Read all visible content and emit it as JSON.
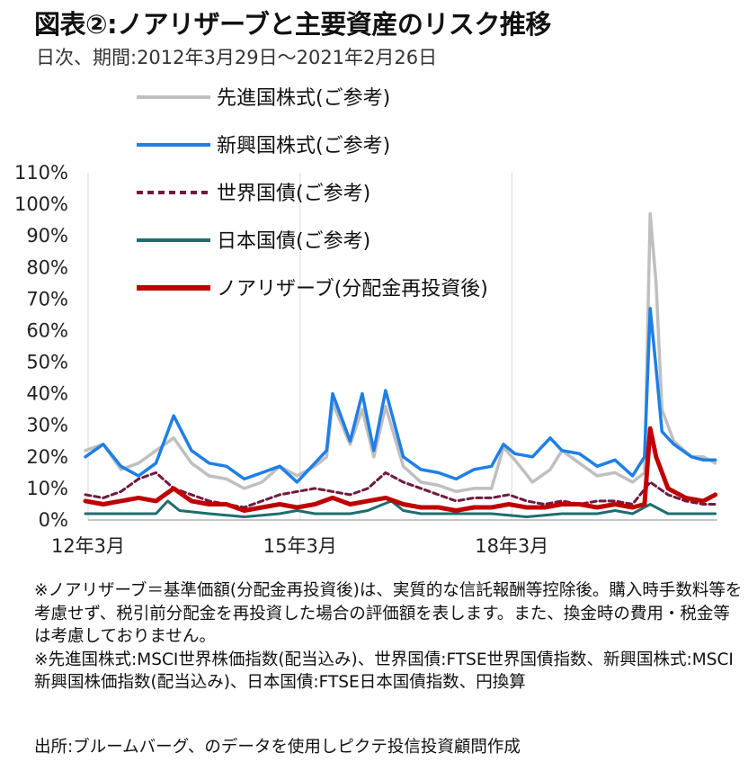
{
  "header": {
    "title": "図表②:ノアリザーブと主要資産のリスク推移",
    "subtitle": "日次、期間:2012年3月29日～2021年2月26日"
  },
  "chart_data": {
    "type": "line",
    "ylim": [
      0,
      110
    ],
    "y_ticks": [
      "0%",
      "10%",
      "20%",
      "30%",
      "40%",
      "50%",
      "60%",
      "70%",
      "80%",
      "90%",
      "100%",
      "110%"
    ],
    "x_range": [
      "2012-03-29",
      "2021-02-26"
    ],
    "x_ticks": [
      {
        "date": "2012-03-29",
        "label": "12年3月"
      },
      {
        "date": "2015-03-31",
        "label": "15年3月"
      },
      {
        "date": "2018-03-30",
        "label": "18年3月"
      }
    ],
    "grid": "vertical-only",
    "legend_placement": "top-left",
    "series": [
      {
        "name": "先進国株式(ご参考)",
        "color": "#bfbfbf",
        "style": "solid",
        "points": [
          [
            "2012-03",
            22
          ],
          [
            "2012-06",
            24
          ],
          [
            "2012-09",
            16
          ],
          [
            "2012-12",
            18
          ],
          [
            "2013-03",
            22
          ],
          [
            "2013-06",
            26
          ],
          [
            "2013-09",
            18
          ],
          [
            "2013-12",
            14
          ],
          [
            "2014-03",
            13
          ],
          [
            "2014-06",
            10
          ],
          [
            "2014-09",
            12
          ],
          [
            "2014-12",
            17
          ],
          [
            "2015-03",
            14
          ],
          [
            "2015-06",
            17
          ],
          [
            "2015-08",
            20
          ],
          [
            "2015-09",
            37
          ],
          [
            "2015-12",
            24
          ],
          [
            "2016-02",
            35
          ],
          [
            "2016-04",
            20
          ],
          [
            "2016-06",
            36
          ],
          [
            "2016-09",
            17
          ],
          [
            "2016-12",
            12
          ],
          [
            "2017-03",
            11
          ],
          [
            "2017-06",
            9
          ],
          [
            "2017-09",
            10
          ],
          [
            "2017-12",
            10
          ],
          [
            "2018-02",
            23
          ],
          [
            "2018-04",
            19
          ],
          [
            "2018-07",
            12
          ],
          [
            "2018-10",
            16
          ],
          [
            "2018-12",
            22
          ],
          [
            "2019-03",
            18
          ],
          [
            "2019-06",
            14
          ],
          [
            "2019-09",
            15
          ],
          [
            "2019-12",
            12
          ],
          [
            "2020-02",
            15
          ],
          [
            "2020-03",
            97
          ],
          [
            "2020-04",
            75
          ],
          [
            "2020-05",
            35
          ],
          [
            "2020-07",
            25
          ],
          [
            "2020-10",
            20
          ],
          [
            "2020-12",
            20
          ],
          [
            "2021-02",
            18
          ]
        ]
      },
      {
        "name": "新興国株式(ご参考)",
        "color": "#1e7fe6",
        "style": "solid",
        "points": [
          [
            "2012-03",
            20
          ],
          [
            "2012-06",
            24
          ],
          [
            "2012-09",
            17
          ],
          [
            "2012-12",
            14
          ],
          [
            "2013-03",
            18
          ],
          [
            "2013-06",
            33
          ],
          [
            "2013-09",
            22
          ],
          [
            "2013-12",
            18
          ],
          [
            "2014-03",
            17
          ],
          [
            "2014-06",
            13
          ],
          [
            "2014-09",
            15
          ],
          [
            "2014-12",
            17
          ],
          [
            "2015-03",
            12
          ],
          [
            "2015-06",
            18
          ],
          [
            "2015-08",
            22
          ],
          [
            "2015-09",
            40
          ],
          [
            "2015-12",
            25
          ],
          [
            "2016-02",
            40
          ],
          [
            "2016-04",
            22
          ],
          [
            "2016-06",
            41
          ],
          [
            "2016-09",
            20
          ],
          [
            "2016-12",
            16
          ],
          [
            "2017-03",
            15
          ],
          [
            "2017-06",
            13
          ],
          [
            "2017-09",
            16
          ],
          [
            "2017-12",
            17
          ],
          [
            "2018-02",
            24
          ],
          [
            "2018-04",
            21
          ],
          [
            "2018-07",
            20
          ],
          [
            "2018-10",
            26
          ],
          [
            "2018-12",
            22
          ],
          [
            "2019-03",
            21
          ],
          [
            "2019-06",
            17
          ],
          [
            "2019-09",
            19
          ],
          [
            "2019-12",
            14
          ],
          [
            "2020-02",
            20
          ],
          [
            "2020-03",
            67
          ],
          [
            "2020-04",
            48
          ],
          [
            "2020-05",
            28
          ],
          [
            "2020-07",
            24
          ],
          [
            "2020-10",
            20
          ],
          [
            "2020-12",
            19
          ],
          [
            "2021-02",
            19
          ]
        ]
      },
      {
        "name": "世界国債(ご参考)",
        "color": "#6e1a40",
        "style": "dashed",
        "points": [
          [
            "2012-03",
            8
          ],
          [
            "2012-06",
            7
          ],
          [
            "2012-09",
            9
          ],
          [
            "2012-12",
            13
          ],
          [
            "2013-03",
            15
          ],
          [
            "2013-06",
            10
          ],
          [
            "2013-09",
            8
          ],
          [
            "2013-12",
            6
          ],
          [
            "2014-03",
            5
          ],
          [
            "2014-06",
            4
          ],
          [
            "2014-09",
            6
          ],
          [
            "2014-12",
            8
          ],
          [
            "2015-03",
            9
          ],
          [
            "2015-06",
            10
          ],
          [
            "2015-09",
            9
          ],
          [
            "2015-12",
            8
          ],
          [
            "2016-03",
            10
          ],
          [
            "2016-06",
            15
          ],
          [
            "2016-09",
            12
          ],
          [
            "2016-12",
            10
          ],
          [
            "2017-03",
            8
          ],
          [
            "2017-06",
            6
          ],
          [
            "2017-09",
            7
          ],
          [
            "2017-12",
            7
          ],
          [
            "2018-03",
            8
          ],
          [
            "2018-06",
            6
          ],
          [
            "2018-09",
            5
          ],
          [
            "2018-12",
            6
          ],
          [
            "2019-03",
            5
          ],
          [
            "2019-06",
            6
          ],
          [
            "2019-09",
            6
          ],
          [
            "2019-12",
            5
          ],
          [
            "2020-03",
            12
          ],
          [
            "2020-06",
            8
          ],
          [
            "2020-09",
            6
          ],
          [
            "2020-12",
            5
          ],
          [
            "2021-02",
            5
          ]
        ]
      },
      {
        "name": "日本国債(ご参考)",
        "color": "#1e6e6e",
        "style": "solid",
        "points": [
          [
            "2012-03",
            2
          ],
          [
            "2012-09",
            2
          ],
          [
            "2013-03",
            2
          ],
          [
            "2013-05",
            6
          ],
          [
            "2013-07",
            3
          ],
          [
            "2013-12",
            2
          ],
          [
            "2014-06",
            1
          ],
          [
            "2014-12",
            2
          ],
          [
            "2015-03",
            3
          ],
          [
            "2015-06",
            2
          ],
          [
            "2015-12",
            2
          ],
          [
            "2016-03",
            3
          ],
          [
            "2016-07",
            6
          ],
          [
            "2016-09",
            3
          ],
          [
            "2016-12",
            2
          ],
          [
            "2017-06",
            2
          ],
          [
            "2017-12",
            2
          ],
          [
            "2018-06",
            1
          ],
          [
            "2018-12",
            2
          ],
          [
            "2019-06",
            2
          ],
          [
            "2019-09",
            3
          ],
          [
            "2019-12",
            2
          ],
          [
            "2020-03",
            5
          ],
          [
            "2020-06",
            2
          ],
          [
            "2020-12",
            2
          ],
          [
            "2021-02",
            2
          ]
        ]
      },
      {
        "name": "ノアリザーブ(分配金再投資後)",
        "color": "#c00000",
        "style": "solid",
        "points": [
          [
            "2012-03",
            6
          ],
          [
            "2012-06",
            5
          ],
          [
            "2012-09",
            6
          ],
          [
            "2012-12",
            7
          ],
          [
            "2013-03",
            6
          ],
          [
            "2013-06",
            10
          ],
          [
            "2013-09",
            6
          ],
          [
            "2013-12",
            5
          ],
          [
            "2014-03",
            5
          ],
          [
            "2014-06",
            3
          ],
          [
            "2014-09",
            4
          ],
          [
            "2014-12",
            5
          ],
          [
            "2015-03",
            4
          ],
          [
            "2015-06",
            5
          ],
          [
            "2015-09",
            7
          ],
          [
            "2015-12",
            5
          ],
          [
            "2016-03",
            6
          ],
          [
            "2016-06",
            7
          ],
          [
            "2016-09",
            5
          ],
          [
            "2016-12",
            4
          ],
          [
            "2017-03",
            4
          ],
          [
            "2017-06",
            3
          ],
          [
            "2017-09",
            4
          ],
          [
            "2017-12",
            4
          ],
          [
            "2018-03",
            5
          ],
          [
            "2018-06",
            4
          ],
          [
            "2018-09",
            4
          ],
          [
            "2018-12",
            5
          ],
          [
            "2019-03",
            5
          ],
          [
            "2019-06",
            4
          ],
          [
            "2019-09",
            5
          ],
          [
            "2019-12",
            4
          ],
          [
            "2020-02",
            5
          ],
          [
            "2020-03",
            29
          ],
          [
            "2020-04",
            20
          ],
          [
            "2020-06",
            10
          ],
          [
            "2020-09",
            7
          ],
          [
            "2020-12",
            6
          ],
          [
            "2021-02",
            8
          ]
        ]
      }
    ]
  },
  "notes": {
    "line1": "※ノアリザーブ＝基準価額(分配金再投資後)は、実質的な信託報酬等控除後。購入時手数料等を考慮せず、税引前分配金を再投資した場合の評価額を表します。また、換金時の費用・税金等は考慮しておりません。",
    "line2": "※先進国株式:MSCI世界株価指数(配当込み)、世界国債:FTSE世界国債指数、新興国株式:MSCI新興国株価指数(配当込み)、日本国債:FTSE日本国債指数、円換算",
    "source": "出所:ブルームバーグ、のデータを使用しピクテ投信投資顧問作成"
  }
}
